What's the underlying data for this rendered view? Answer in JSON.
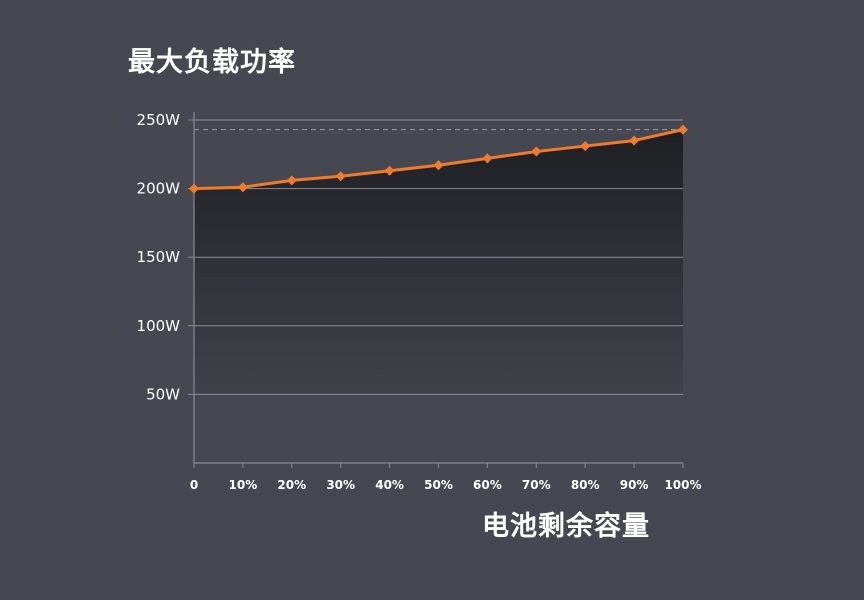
{
  "chart_data": {
    "type": "area",
    "title": "最大负载功率",
    "xlabel": "电池剩余容量",
    "ylabel": "",
    "categories": [
      "0",
      "10%",
      "20%",
      "30%",
      "40%",
      "50%",
      "60%",
      "70%",
      "80%",
      "90%",
      "100%"
    ],
    "yticks": [
      "50W",
      "100W",
      "150W",
      "200W",
      "250W"
    ],
    "ylim": [
      0,
      250
    ],
    "series": [
      {
        "values": [
          200,
          201,
          206,
          209,
          213,
          217,
          222,
          227,
          231,
          235,
          243
        ]
      }
    ],
    "reference_line": {
      "value": 243,
      "style": "dashed"
    },
    "grid": true,
    "colors": {
      "line": "#f07b2c",
      "background": "#464851",
      "grid": "#8a8c94"
    }
  }
}
